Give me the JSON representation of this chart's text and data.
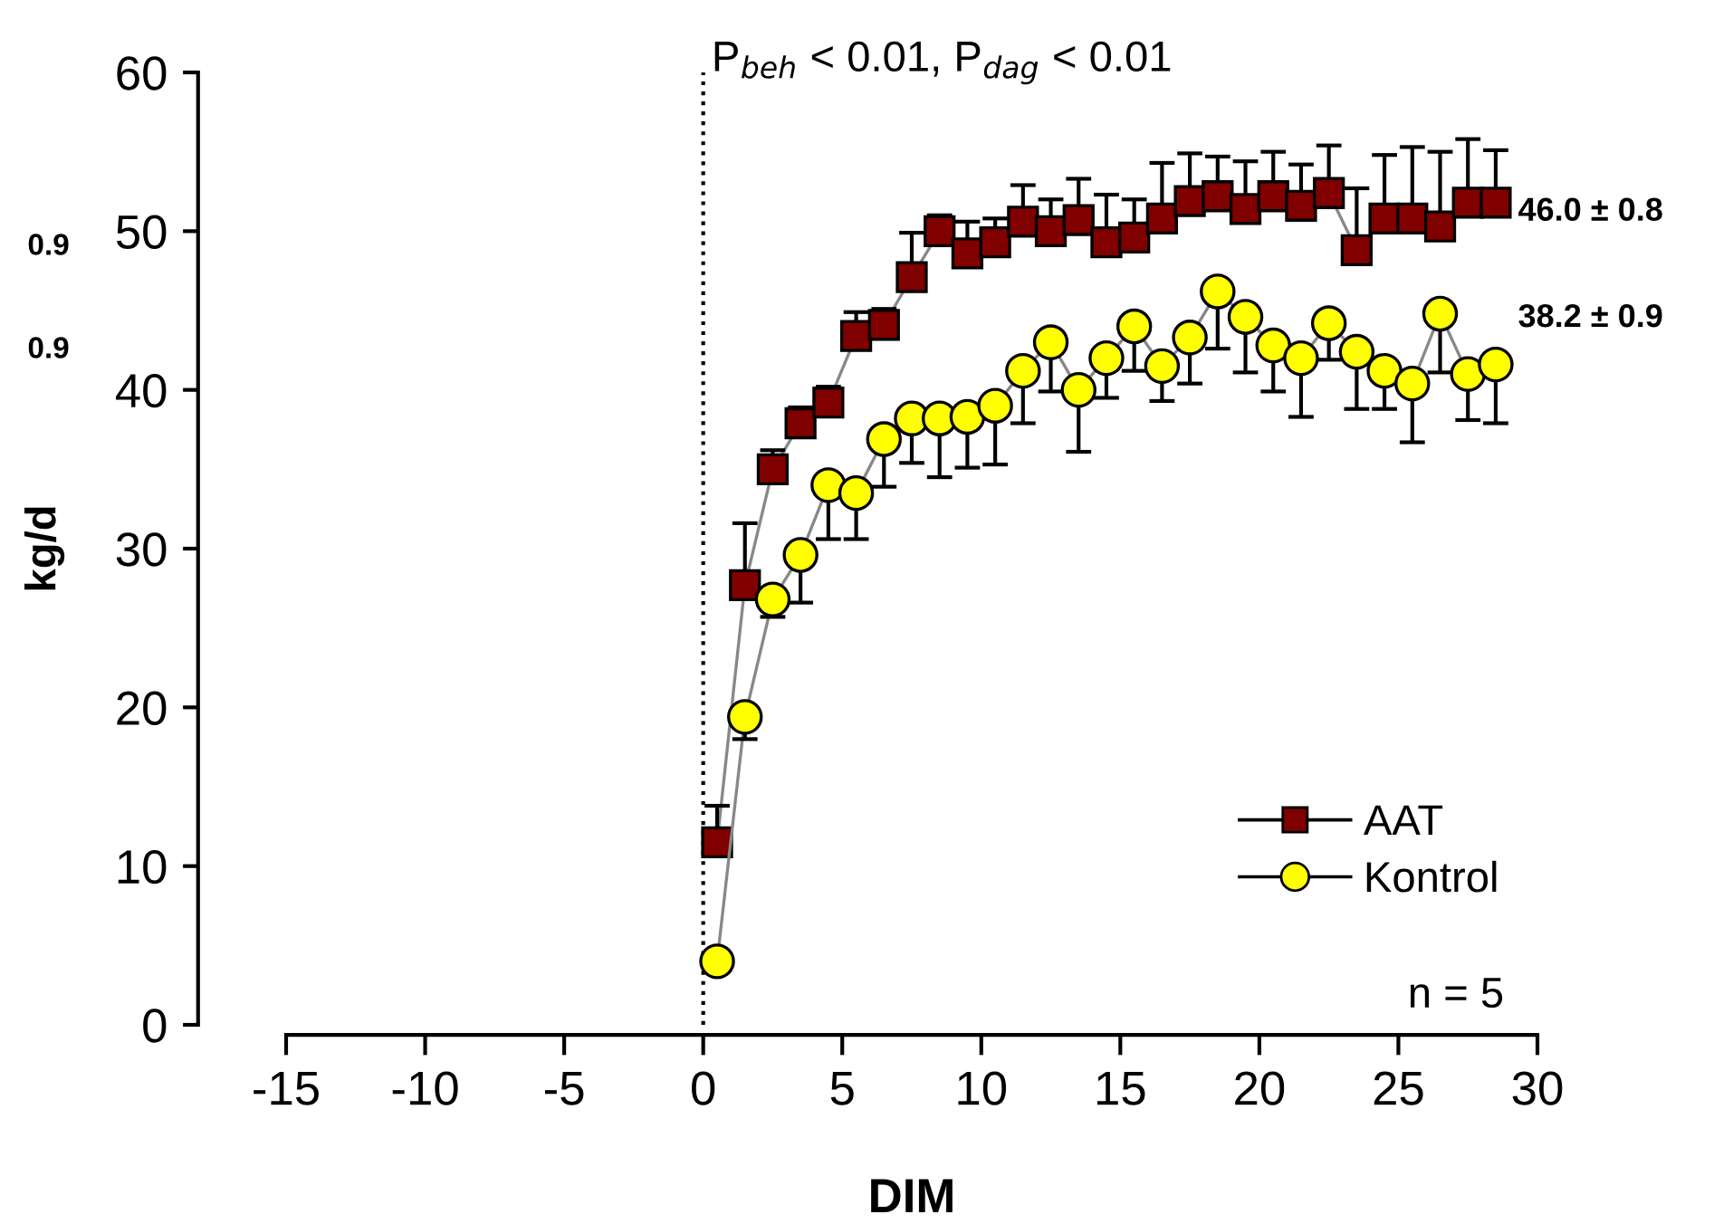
{
  "chart_data": {
    "type": "line",
    "xlabel": "DIM",
    "ylabel": "kg/d",
    "x": [
      0.5,
      1.5,
      2.5,
      3.5,
      4.5,
      5.5,
      6.5,
      7.5,
      8.5,
      9.5,
      10.5,
      11.5,
      12.5,
      13.5,
      14.5,
      15.5,
      16.5,
      17.5,
      18.5,
      19.5,
      20.5,
      21.5,
      22.5,
      23.5,
      24.5,
      25.5,
      26.5,
      27.5,
      28.5
    ],
    "series": [
      {
        "name": "AAT",
        "color": "#800000",
        "marker": "square",
        "values": [
          11.5,
          27.7,
          35,
          37.9,
          39.2,
          43.4,
          44.1,
          47.1,
          50,
          48.6,
          49.3,
          50.6,
          50,
          50.7,
          49.3,
          49.6,
          50.8,
          51.9,
          52.2,
          51.4,
          52.2,
          51.6,
          52.4,
          48.8,
          50.8,
          50.8,
          50.3,
          51.8,
          51.8
        ],
        "errors": [
          [
            11.5,
            13.8
          ],
          [
            27.7,
            31.6
          ],
          [
            35,
            36.2
          ],
          [
            37.9,
            38.9
          ],
          [
            39.2,
            40.2
          ],
          [
            43.4,
            44.9
          ],
          [
            44.1,
            45.1
          ],
          [
            47.1,
            49.9
          ],
          [
            50,
            51
          ],
          [
            48.6,
            50.6
          ],
          [
            49.3,
            50.8
          ],
          [
            50.6,
            52.9
          ],
          [
            50,
            52
          ],
          [
            50.7,
            53.3
          ],
          [
            49.3,
            52.3
          ],
          [
            49.6,
            52
          ],
          [
            50.8,
            54.3
          ],
          [
            51.9,
            54.9
          ],
          [
            52.2,
            54.7
          ],
          [
            51.4,
            54.4
          ],
          [
            52.2,
            55
          ],
          [
            51.6,
            54.2
          ],
          [
            52.4,
            55.4
          ],
          [
            48.8,
            52.7
          ],
          [
            50.8,
            54.8
          ],
          [
            50.8,
            55.3
          ],
          [
            50.3,
            55
          ],
          [
            51.8,
            55.8
          ],
          [
            51.8,
            55.1
          ]
        ]
      },
      {
        "name": "Kontrol",
        "color": "#ffff00",
        "marker": "circle",
        "values": [
          4,
          19.4,
          26.8,
          29.6,
          34,
          33.5,
          36.9,
          38.2,
          38.2,
          38.3,
          39,
          41.2,
          43,
          40,
          42,
          44,
          41.5,
          43.3,
          46.2,
          44.6,
          42.8,
          42,
          44.2,
          42.4,
          41.2,
          40.4,
          44.8,
          41,
          41.6
        ],
        "errors": [
          null,
          [
            18,
            19.4
          ],
          [
            25.7,
            26.8
          ],
          [
            26.6,
            29.6
          ],
          [
            30.6,
            34
          ],
          [
            30.6,
            33.5
          ],
          [
            33.9,
            36.9
          ],
          [
            35.4,
            38.2
          ],
          [
            34.5,
            38.2
          ],
          [
            35.1,
            38.3
          ],
          [
            35.3,
            39
          ],
          [
            37.9,
            41.2
          ],
          [
            39.9,
            43
          ],
          [
            36.1,
            40
          ],
          [
            39.5,
            42
          ],
          [
            41.2,
            44
          ],
          [
            39.3,
            41.5
          ],
          [
            40.4,
            43.3
          ],
          [
            42.6,
            46.2
          ],
          [
            41.1,
            44.6
          ],
          [
            39.9,
            42.8
          ],
          [
            38.3,
            42
          ],
          [
            41.9,
            44.2
          ],
          [
            38.8,
            42.4
          ],
          [
            38.8,
            41.2
          ],
          [
            36.7,
            40.4
          ],
          [
            41.1,
            44.8
          ],
          [
            38.1,
            41
          ],
          [
            37.9,
            41.6
          ]
        ]
      }
    ],
    "xlim": [
      -15,
      30
    ],
    "xticks": [
      -15,
      -10,
      -5,
      0,
      5,
      10,
      15,
      20,
      25,
      30
    ],
    "ylim": [
      0,
      60
    ],
    "yticks": [
      0,
      10,
      20,
      30,
      40,
      50,
      60
    ],
    "grid": false,
    "legend": "bottom right",
    "ref_lines": [
      {
        "axis": "x",
        "value": 0,
        "line_style": "dotted",
        "color": "#000000"
      }
    ],
    "annotations": [
      "P$_{beh}$ < 0.01, P$_{dag}$ < 0.01",
      "46.0 ± 0.8",
      "38.2 ± 0.9",
      "n = 5",
      "0.9",
      "0.9"
    ]
  }
}
